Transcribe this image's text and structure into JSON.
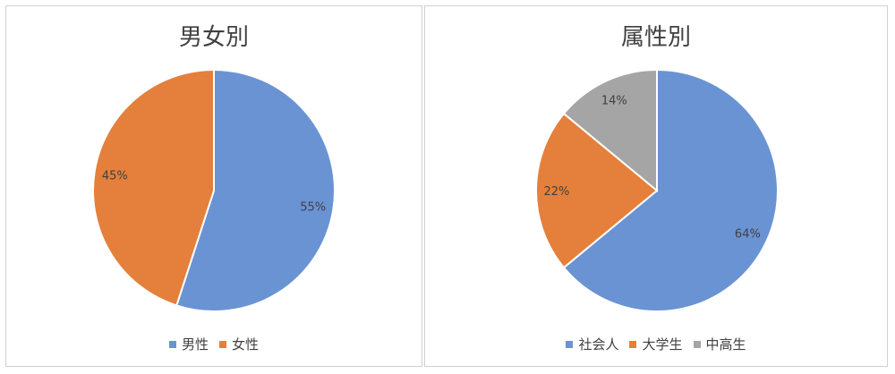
{
  "chart_data": [
    {
      "type": "pie",
      "title": "男女別",
      "categories": [
        "男性",
        "女性"
      ],
      "values": [
        55,
        45
      ],
      "data_labels": [
        "55%",
        "45%"
      ],
      "colors": [
        "#6a93d4",
        "#e4803b"
      ],
      "legend": "bottom"
    },
    {
      "type": "pie",
      "title": "属性別",
      "categories": [
        "社会人",
        "大学生",
        "中高生"
      ],
      "values": [
        64,
        22,
        14
      ],
      "data_labels": [
        "64%",
        "22%",
        "14%"
      ],
      "colors": [
        "#6a93d4",
        "#e4803b",
        "#a5a5a5"
      ],
      "legend": "bottom"
    }
  ]
}
